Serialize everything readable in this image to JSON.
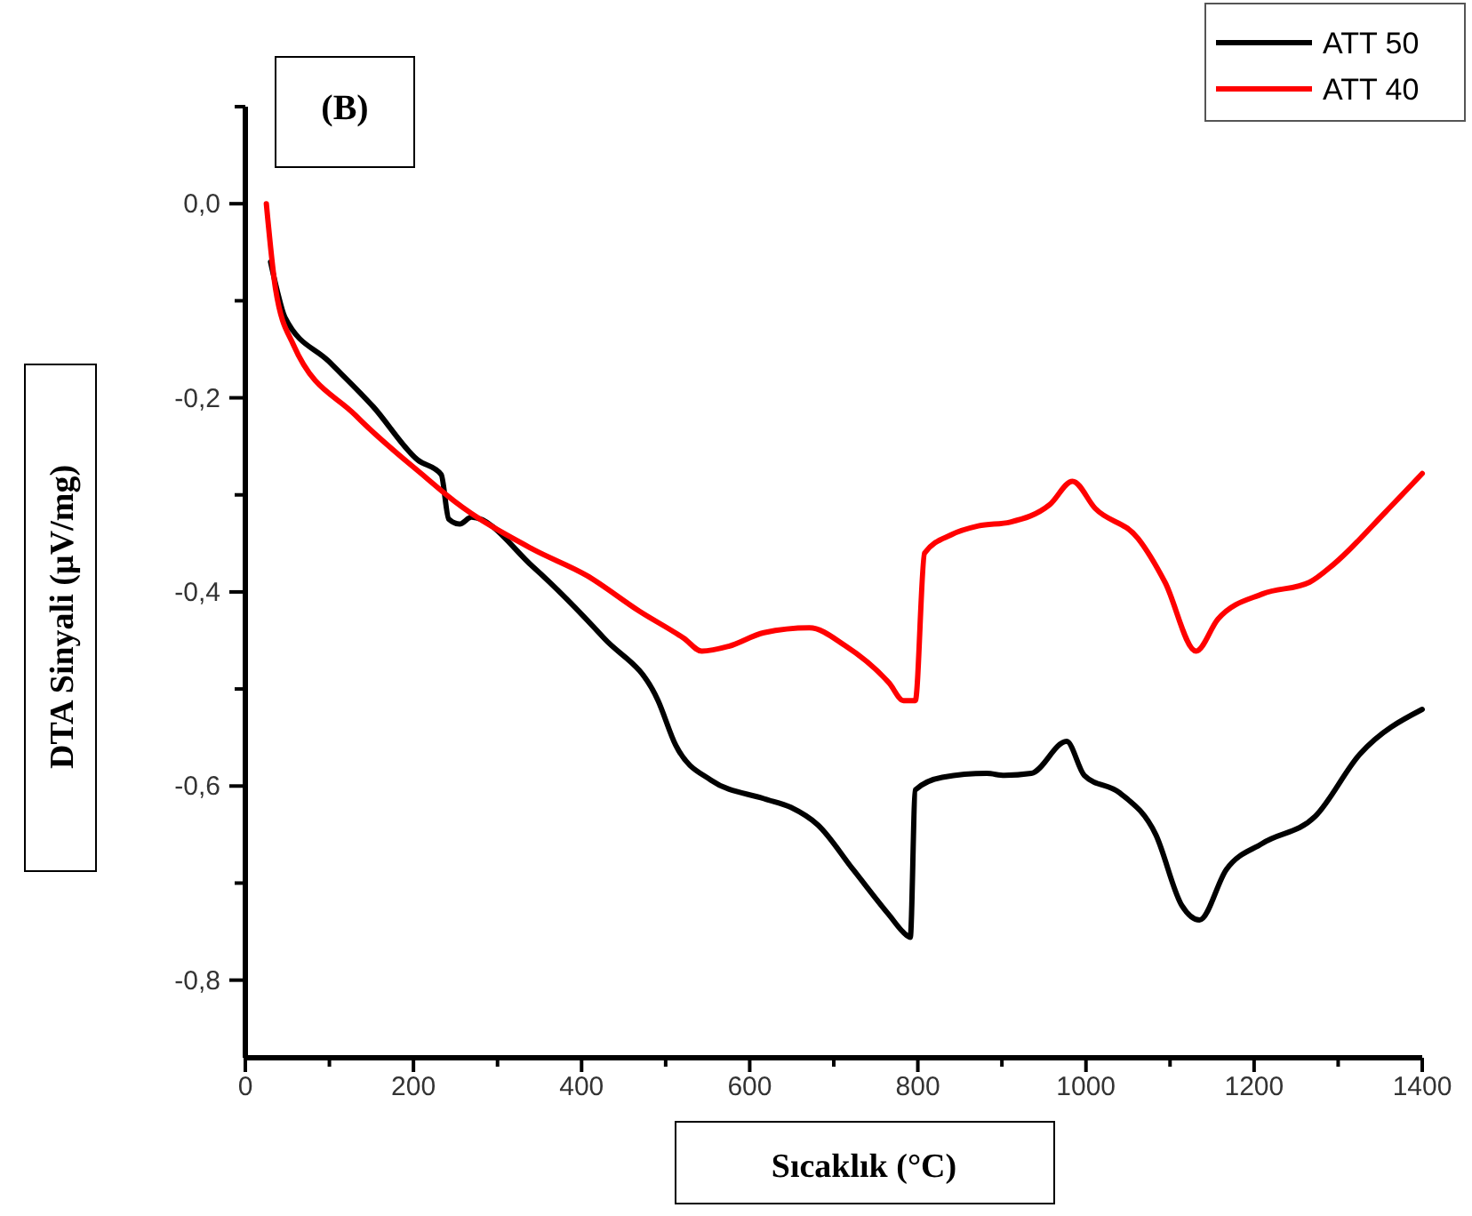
{
  "chart_data": {
    "type": "line",
    "xlabel": "Sıcaklık (°C)",
    "ylabel": "DTA Sinyali (µV/mg)",
    "annotations": [
      "(B)"
    ],
    "xlim": [
      0,
      1400
    ],
    "ylim": [
      -0.88,
      0.1
    ],
    "xticks": [
      0,
      {
        "value": 100,
        "label": null
      },
      200,
      {
        "value": 300,
        "label": null
      },
      400,
      {
        "value": 500,
        "label": null
      },
      600,
      {
        "value": 700,
        "label": null
      },
      800,
      {
        "value": 900,
        "label": null
      },
      1000,
      {
        "value": 1100,
        "label": null
      },
      1200,
      {
        "value": 1300,
        "label": null
      },
      1400
    ],
    "yticks": [
      {
        "value": -0.8,
        "label": "-0,8"
      },
      {
        "value": -0.7,
        "label": null
      },
      {
        "value": -0.6,
        "label": "-0,6"
      },
      {
        "value": -0.5,
        "label": null
      },
      {
        "value": -0.4,
        "label": "-0,4"
      },
      {
        "value": -0.3,
        "label": null
      },
      {
        "value": -0.2,
        "label": "-0,2"
      },
      {
        "value": -0.1,
        "label": null
      },
      {
        "value": 0,
        "label": "0,0"
      },
      {
        "value": 0.1,
        "label": null
      }
    ],
    "grid": false,
    "legend": "top right",
    "line_style": "solid",
    "marker": "none",
    "series": [
      {
        "name": "ATT 50",
        "color": "#000000",
        "x": [
          30,
          38,
          47,
          100,
          152,
          205,
          233,
          242,
          255,
          269,
          342,
          427,
          491,
          512,
          554,
          617,
          649,
          681,
          723,
          765,
          787,
          791,
          797,
          829,
          882,
          903,
          935,
          977,
          998,
          1040,
          1083,
          1114,
          1135,
          1167,
          1210,
          1273,
          1326,
          1400
        ],
        "values": [
          -0.06,
          -0.09,
          -0.117,
          -0.163,
          -0.209,
          -0.264,
          -0.279,
          -0.325,
          -0.33,
          -0.323,
          -0.374,
          -0.448,
          -0.512,
          -0.558,
          -0.594,
          -0.613,
          -0.622,
          -0.64,
          -0.686,
          -0.732,
          -0.754,
          -0.756,
          -0.604,
          -0.591,
          -0.587,
          -0.589,
          -0.587,
          -0.554,
          -0.589,
          -0.607,
          -0.65,
          -0.723,
          -0.738,
          -0.686,
          -0.659,
          -0.631,
          -0.567,
          -0.521
        ]
      },
      {
        "name": "ATT 40",
        "color": "#ff0000",
        "x": [
          25,
          36,
          57,
          131,
          216,
          248,
          342,
          406,
          469,
          522,
          543,
          575,
          617,
          671,
          713,
          766,
          783,
          797,
          808,
          840,
          872,
          910,
          957,
          984,
          1011,
          1062,
          1094,
          1131,
          1157,
          1210,
          1266,
          1294,
          1357,
          1400
        ],
        "values": [
          0,
          -0.088,
          -0.145,
          -0.218,
          -0.283,
          -0.306,
          -0.356,
          -0.383,
          -0.42,
          -0.448,
          -0.461,
          -0.456,
          -0.442,
          -0.437,
          -0.455,
          -0.494,
          -0.512,
          -0.512,
          -0.36,
          -0.341,
          -0.332,
          -0.328,
          -0.31,
          -0.286,
          -0.314,
          -0.345,
          -0.39,
          -0.461,
          -0.428,
          -0.402,
          -0.39,
          -0.372,
          -0.317,
          -0.278
        ]
      }
    ]
  }
}
